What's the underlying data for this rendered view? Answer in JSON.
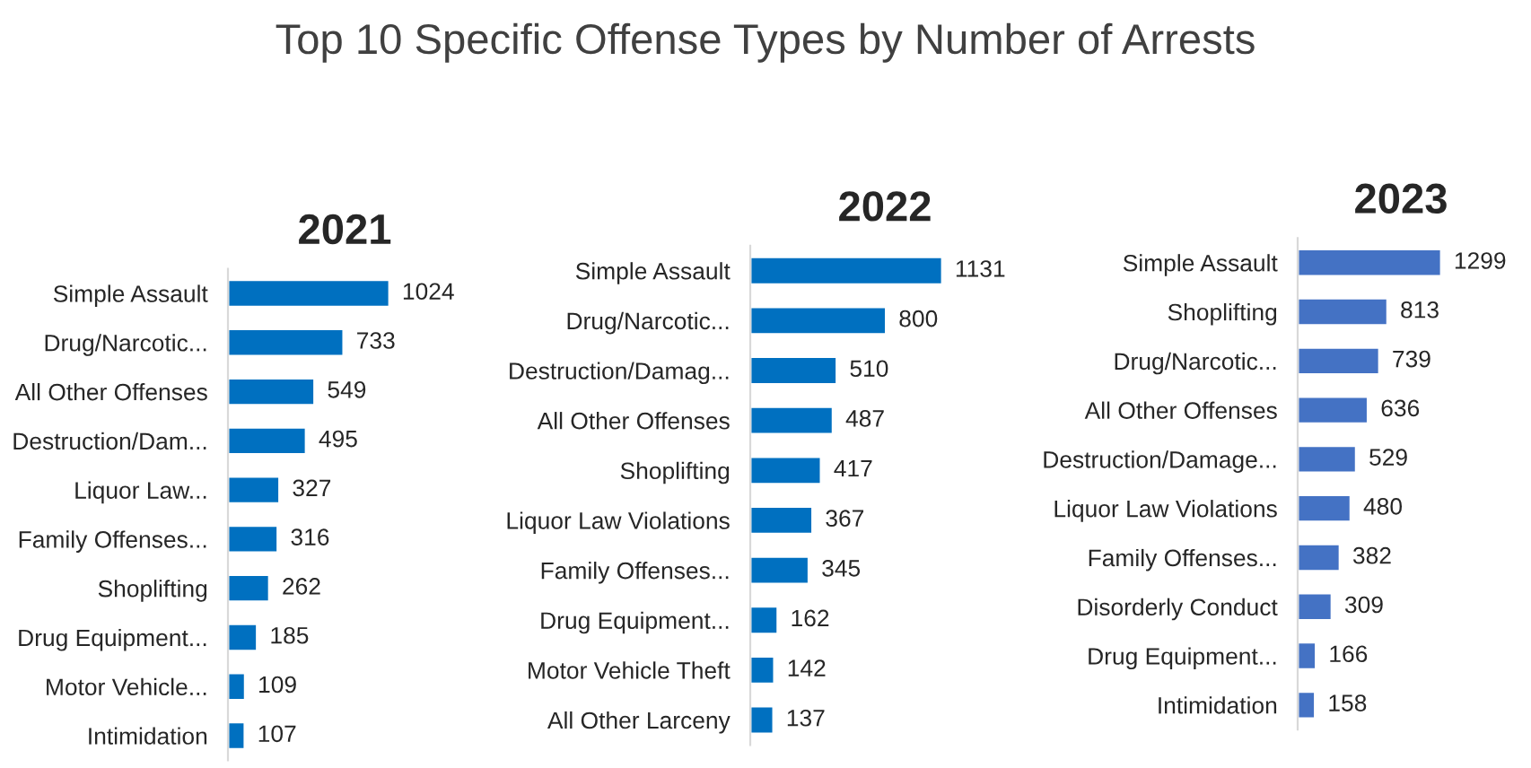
{
  "chart_data": [
    {
      "type": "bar",
      "orientation": "horizontal",
      "title": "2021",
      "annotations": [
        "Top 10 Specific Offense Types by Number of Arrests"
      ],
      "data_labels": true,
      "grid": false,
      "legend": false,
      "tick_labels": "y",
      "categories": [
        "Simple Assault",
        "Drug/Narcotic...",
        "All Other Offenses",
        "Destruction/Dam...",
        "Liquor Law...",
        "Family Offenses...",
        "Shoplifting",
        "Drug Equipment...",
        "Motor Vehicle...",
        "Intimidation"
      ],
      "series": [
        {
          "color": "#0070c0",
          "values": [
            1024,
            733,
            549,
            495,
            327,
            316,
            262,
            185,
            109,
            107
          ]
        }
      ]
    },
    {
      "type": "bar",
      "orientation": "horizontal",
      "title": "2022",
      "data_labels": true,
      "grid": false,
      "legend": false,
      "tick_labels": "y",
      "categories": [
        "Simple Assault",
        "Drug/Narcotic...",
        "Destruction/Damag...",
        "All Other Offenses",
        "Shoplifting",
        "Liquor Law Violations",
        "Family Offenses...",
        "Drug Equipment...",
        "Motor Vehicle Theft",
        "All Other Larceny"
      ],
      "series": [
        {
          "color": "#0070c0",
          "values": [
            1131,
            800,
            510,
            487,
            417,
            367,
            345,
            162,
            142,
            137
          ]
        }
      ]
    },
    {
      "type": "bar",
      "orientation": "horizontal",
      "title": "2023",
      "data_labels": true,
      "grid": false,
      "legend": false,
      "tick_labels": "y",
      "categories": [
        "Simple Assault",
        "Shoplifting",
        "Drug/Narcotic...",
        "All Other Offenses",
        "Destruction/Damage...",
        "Liquor Law Violations",
        "Family Offenses...",
        "Disorderly Conduct",
        "Drug Equipment...",
        "Intimidation"
      ],
      "series": [
        {
          "color": "#4472c4",
          "values": [
            1299,
            813,
            739,
            636,
            529,
            480,
            382,
            309,
            166,
            158
          ]
        }
      ]
    }
  ]
}
